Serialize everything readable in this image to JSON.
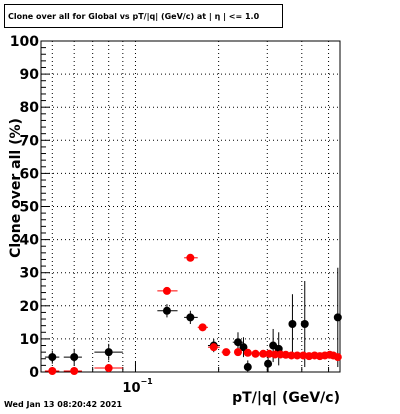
{
  "chart_data": {
    "type": "scatter",
    "title": "Clone  over all for Global vs pT/|q| (GeV/c) at |  η | <= 1.0",
    "xlabel": "pT/|q| (GeV/c)",
    "ylabel": "Clone  over all (%)",
    "xscale": "log",
    "xlim": [
      0.0455,
      0.55
    ],
    "ylim": [
      0,
      100
    ],
    "grid": true,
    "y_ticks": [
      "0",
      "10",
      "20",
      "30",
      "40",
      "50",
      "60",
      "70",
      "80",
      "90",
      "100"
    ],
    "x_tick_label": {
      "base": "10",
      "exponent": "−1",
      "value": 0.1
    },
    "series": [
      {
        "color": "#000000",
        "points": [
          {
            "x": 0.05,
            "xlo": 0.047,
            "xhi": 0.053,
            "y": 4.5,
            "err": 2.0
          },
          {
            "x": 0.06,
            "xlo": 0.055,
            "xhi": 0.064,
            "y": 4.5,
            "err": 2.5
          },
          {
            "x": 0.08,
            "xlo": 0.071,
            "xhi": 0.09,
            "y": 6.0,
            "err": 2.5
          },
          {
            "x": 0.13,
            "xlo": 0.12,
            "xhi": 0.142,
            "y": 18.5,
            "err": 2.0
          },
          {
            "x": 0.158,
            "xlo": 0.15,
            "xhi": 0.168,
            "y": 16.5,
            "err": 2.0
          },
          {
            "x": 0.192,
            "xlo": 0.183,
            "xhi": 0.202,
            "y": 8.0,
            "err": 2.0
          },
          {
            "x": 0.235,
            "xlo": 0.225,
            "xhi": 0.245,
            "y": 9.0,
            "err": 3.0
          },
          {
            "x": 0.246,
            "xlo": 0.24,
            "xhi": 0.252,
            "y": 7.5,
            "err": 3.0
          },
          {
            "x": 0.255,
            "xlo": 0.25,
            "xhi": 0.26,
            "y": 1.5,
            "err": 2.0
          },
          {
            "x": 0.302,
            "xlo": 0.297,
            "xhi": 0.307,
            "y": 2.5,
            "err": 3.0
          },
          {
            "x": 0.315,
            "xlo": 0.31,
            "xhi": 0.32,
            "y": 8.0,
            "err": 5.0
          },
          {
            "x": 0.33,
            "xlo": 0.325,
            "xhi": 0.335,
            "y": 7.0,
            "err": 5.0
          },
          {
            "x": 0.37,
            "xlo": 0.365,
            "xhi": 0.375,
            "y": 14.5,
            "err": 9.0
          },
          {
            "x": 0.41,
            "xlo": 0.405,
            "xhi": 0.415,
            "y": 14.5,
            "err": 13.0
          },
          {
            "x": 0.54,
            "xlo": 0.535,
            "xhi": 0.545,
            "y": 16.5,
            "err": 15.0
          }
        ]
      },
      {
        "color": "#ff0000",
        "points": [
          {
            "x": 0.05,
            "xlo": 0.047,
            "xhi": 0.053,
            "y": 0.3,
            "err": 0.3
          },
          {
            "x": 0.06,
            "xlo": 0.055,
            "xhi": 0.064,
            "y": 0.3,
            "err": 0.3
          },
          {
            "x": 0.08,
            "xlo": 0.071,
            "xhi": 0.09,
            "y": 1.2,
            "err": 0.5
          },
          {
            "x": 0.13,
            "xlo": 0.12,
            "xhi": 0.142,
            "y": 24.5,
            "err": 0.8
          },
          {
            "x": 0.158,
            "xlo": 0.15,
            "xhi": 0.168,
            "y": 34.5,
            "err": 0.8
          },
          {
            "x": 0.175,
            "xlo": 0.168,
            "xhi": 0.183,
            "y": 13.5,
            "err": 0.8
          },
          {
            "x": 0.192,
            "xlo": 0.183,
            "xhi": 0.202,
            "y": 7.5,
            "err": 0.8
          },
          {
            "x": 0.213,
            "xlo": 0.205,
            "xhi": 0.221,
            "y": 6.0,
            "err": 0.8
          },
          {
            "x": 0.235,
            "xlo": 0.228,
            "xhi": 0.242,
            "y": 6.0,
            "err": 0.8
          },
          {
            "x": 0.255,
            "xlo": 0.248,
            "xhi": 0.262,
            "y": 5.8,
            "err": 0.8
          },
          {
            "x": 0.272,
            "xlo": 0.265,
            "xhi": 0.279,
            "y": 5.5,
            "err": 0.8
          },
          {
            "x": 0.29,
            "xlo": 0.283,
            "xhi": 0.297,
            "y": 5.5,
            "err": 0.8
          },
          {
            "x": 0.305,
            "xlo": 0.299,
            "xhi": 0.311,
            "y": 5.5,
            "err": 0.8
          },
          {
            "x": 0.32,
            "xlo": 0.314,
            "xhi": 0.326,
            "y": 5.3,
            "err": 0.8
          },
          {
            "x": 0.335,
            "xlo": 0.329,
            "xhi": 0.341,
            "y": 5.3,
            "err": 0.8
          },
          {
            "x": 0.35,
            "xlo": 0.344,
            "xhi": 0.356,
            "y": 5.2,
            "err": 0.8
          },
          {
            "x": 0.367,
            "xlo": 0.361,
            "xhi": 0.373,
            "y": 5.0,
            "err": 0.8
          },
          {
            "x": 0.385,
            "xlo": 0.379,
            "xhi": 0.391,
            "y": 5.0,
            "err": 0.8
          },
          {
            "x": 0.405,
            "xlo": 0.399,
            "xhi": 0.411,
            "y": 5.0,
            "err": 0.8
          },
          {
            "x": 0.425,
            "xlo": 0.419,
            "xhi": 0.431,
            "y": 4.8,
            "err": 0.8
          },
          {
            "x": 0.445,
            "xlo": 0.439,
            "xhi": 0.451,
            "y": 5.0,
            "err": 0.8
          },
          {
            "x": 0.465,
            "xlo": 0.459,
            "xhi": 0.471,
            "y": 4.8,
            "err": 0.8
          },
          {
            "x": 0.485,
            "xlo": 0.479,
            "xhi": 0.491,
            "y": 5.0,
            "err": 0.8
          },
          {
            "x": 0.505,
            "xlo": 0.499,
            "xhi": 0.511,
            "y": 5.2,
            "err": 0.8
          },
          {
            "x": 0.52,
            "xlo": 0.514,
            "xhi": 0.526,
            "y": 5.0,
            "err": 0.8
          },
          {
            "x": 0.54,
            "xlo": 0.534,
            "xhi": 0.546,
            "y": 4.5,
            "err": 0.8
          }
        ]
      }
    ]
  },
  "timestamp": "Wed Jan 13 08:20:42 2021"
}
